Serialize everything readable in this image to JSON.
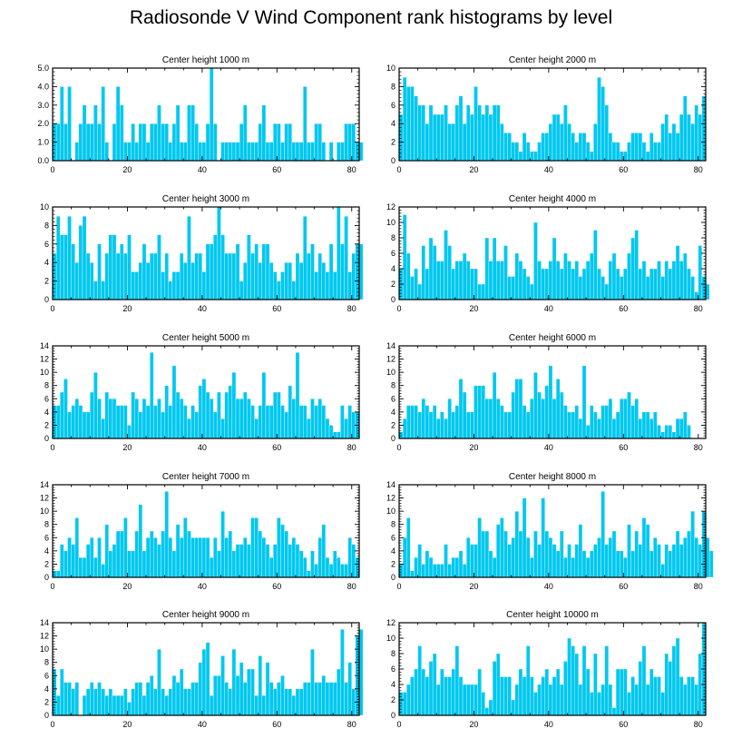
{
  "title": "Radiosonde V Wind Component rank histograms by level",
  "colors": {
    "bar": "#00c8f0",
    "bar_edge": "#ffffff",
    "axis": "#000000"
  },
  "chart_data": [
    {
      "type": "bar",
      "title": "Center height 1000 m",
      "xlabel": "",
      "ylabel": "",
      "xlim": [
        0,
        82
      ],
      "ylim": [
        0,
        5
      ],
      "xticks": [
        "0",
        "20",
        "40",
        "60",
        "80"
      ],
      "yticks": [
        "0.0",
        "1.0",
        "2.0",
        "3.0",
        "4.0",
        "5.0"
      ],
      "values": [
        2,
        2,
        4,
        2,
        4,
        0,
        1,
        2,
        3,
        2,
        2,
        3,
        2,
        4,
        1,
        0,
        2,
        4,
        3,
        1,
        1,
        2,
        1,
        2,
        2,
        1,
        2,
        2,
        3,
        2,
        2,
        1,
        2,
        3,
        1,
        1,
        3,
        3,
        2,
        1,
        1,
        2,
        5,
        2,
        0,
        1,
        1,
        1,
        1,
        1,
        2,
        3,
        1,
        1,
        1,
        2,
        3,
        1,
        1,
        2,
        2,
        1,
        2,
        2,
        1,
        1,
        1,
        4,
        1,
        1,
        2,
        2,
        1,
        0,
        1,
        0,
        1,
        1,
        2,
        2,
        2,
        1,
        1
      ]
    },
    {
      "type": "bar",
      "title": "Center height 2000 m",
      "xlabel": "",
      "ylabel": "",
      "xlim": [
        0,
        82
      ],
      "ylim": [
        0,
        10
      ],
      "xticks": [
        "0",
        "20",
        "40",
        "60",
        "80"
      ],
      "yticks": [
        "0",
        "2",
        "4",
        "6",
        "8",
        "10"
      ],
      "values": [
        5,
        9,
        8,
        8,
        7,
        6,
        6,
        4,
        6,
        5,
        5,
        5,
        6,
        4,
        4,
        6,
        7,
        4,
        6,
        5,
        8,
        6,
        5,
        6,
        5,
        6,
        6,
        4,
        3,
        3,
        2,
        2,
        1,
        3,
        2,
        1,
        1,
        2,
        3,
        3,
        4,
        5,
        5,
        4,
        6,
        4,
        3,
        2,
        3,
        3,
        2,
        1,
        4,
        9,
        8,
        6,
        3,
        2,
        2,
        1,
        1,
        2,
        3,
        3,
        3,
        2,
        1,
        3,
        2,
        2,
        4,
        5,
        3,
        4,
        3,
        5,
        7,
        5,
        4,
        6,
        5,
        7
      ]
    },
    {
      "type": "bar",
      "title": "Center height 3000 m",
      "xlabel": "",
      "ylabel": "",
      "xlim": [
        0,
        82
      ],
      "ylim": [
        0,
        10
      ],
      "xticks": [
        "0",
        "20",
        "40",
        "60",
        "80"
      ],
      "yticks": [
        "0",
        "2",
        "4",
        "6",
        "8",
        "10"
      ],
      "values": [
        5,
        9,
        7,
        7,
        9,
        6,
        4,
        8,
        9,
        5,
        4,
        2,
        6,
        2,
        5,
        7,
        7,
        5,
        6,
        5,
        7,
        3,
        3,
        4,
        6,
        4,
        5,
        5,
        7,
        3,
        5,
        2,
        3,
        3,
        5,
        4,
        9,
        4,
        5,
        5,
        3,
        6,
        6,
        7,
        10,
        7,
        5,
        5,
        5,
        6,
        2,
        4,
        7,
        5,
        6,
        4,
        6,
        6,
        4,
        3,
        2,
        3,
        4,
        4,
        2,
        5,
        4,
        9,
        5,
        6,
        3,
        5,
        4,
        3,
        6,
        3,
        10,
        6,
        9,
        3,
        5,
        6,
        6
      ]
    },
    {
      "type": "bar",
      "title": "Center height 4000 m",
      "xlabel": "",
      "ylabel": "",
      "xlim": [
        0,
        82
      ],
      "ylim": [
        0,
        12
      ],
      "xticks": [
        "0",
        "20",
        "40",
        "60",
        "80"
      ],
      "yticks": [
        "0",
        "2",
        "4",
        "6",
        "8",
        "10",
        "12"
      ],
      "values": [
        4,
        11,
        6,
        3,
        4,
        2,
        7,
        4,
        8,
        7,
        5,
        5,
        9,
        7,
        4,
        5,
        5,
        6,
        5,
        4,
        4,
        2,
        2,
        8,
        5,
        8,
        5,
        5,
        7,
        3,
        3,
        6,
        5,
        4,
        3,
        2,
        10,
        5,
        4,
        4,
        5,
        8,
        5,
        4,
        6,
        5,
        4,
        5,
        3,
        4,
        5,
        6,
        9,
        4,
        3,
        2,
        5,
        6,
        4,
        3,
        4,
        6,
        8,
        9,
        4,
        5,
        3,
        4,
        4,
        5,
        3,
        5,
        4,
        5,
        7,
        5,
        6,
        4,
        3,
        1,
        7,
        3,
        2
      ]
    },
    {
      "type": "bar",
      "title": "Center height 5000 m",
      "xlabel": "",
      "ylabel": "",
      "xlim": [
        0,
        82
      ],
      "ylim": [
        0,
        14
      ],
      "xticks": [
        "0",
        "20",
        "40",
        "60",
        "80"
      ],
      "yticks": [
        "0",
        "2",
        "4",
        "6",
        "8",
        "10",
        "12",
        "14"
      ],
      "values": [
        5,
        5,
        7,
        9,
        4,
        5,
        6,
        5,
        4,
        4,
        7,
        10,
        6,
        3,
        7,
        6,
        6,
        5,
        5,
        5,
        2,
        7,
        6,
        4,
        6,
        5,
        13,
        5,
        6,
        4,
        8,
        5,
        11,
        7,
        6,
        5,
        3,
        5,
        4,
        8,
        9,
        7,
        6,
        4,
        7,
        3,
        7,
        8,
        10,
        6,
        6,
        7,
        6,
        5,
        3,
        5,
        10,
        5,
        5,
        7,
        7,
        5,
        4,
        8,
        6,
        13,
        5,
        5,
        3,
        6,
        5,
        6,
        5,
        3,
        2,
        1,
        1,
        5,
        3,
        5,
        4,
        4
      ]
    },
    {
      "type": "bar",
      "title": "Center height 6000 m",
      "xlabel": "",
      "ylabel": "",
      "xlim": [
        0,
        82
      ],
      "ylim": [
        0,
        14
      ],
      "xticks": [
        "0",
        "20",
        "40",
        "60",
        "80"
      ],
      "yticks": [
        "0",
        "2",
        "4",
        "6",
        "8",
        "10",
        "12",
        "14"
      ],
      "values": [
        1,
        3,
        5,
        5,
        5,
        4,
        6,
        5,
        4,
        5,
        3,
        4,
        3,
        6,
        4,
        5,
        9,
        7,
        4,
        4,
        8,
        8,
        8,
        6,
        6,
        10,
        6,
        5,
        4,
        4,
        7,
        9,
        9,
        5,
        4,
        6,
        10,
        7,
        6,
        8,
        11,
        6,
        9,
        7,
        5,
        4,
        4,
        5,
        3,
        11,
        2,
        5,
        4,
        3,
        5,
        5,
        6,
        3,
        4,
        6,
        6,
        7,
        5,
        6,
        3,
        4,
        4,
        3,
        4,
        2,
        1,
        2,
        2,
        1,
        3,
        3,
        4,
        2
      ]
    },
    {
      "type": "bar",
      "title": "Center height 7000 m",
      "xlabel": "",
      "ylabel": "",
      "xlim": [
        0,
        82
      ],
      "ylim": [
        0,
        14
      ],
      "xticks": [
        "0",
        "20",
        "40",
        "60",
        "80"
      ],
      "yticks": [
        "0",
        "2",
        "4",
        "6",
        "8",
        "10",
        "12",
        "14"
      ],
      "values": [
        1,
        1,
        5,
        4,
        6,
        5,
        9,
        3,
        3,
        5,
        6,
        3,
        6,
        2,
        8,
        4,
        5,
        7,
        7,
        9,
        4,
        4,
        7,
        11,
        4,
        6,
        7,
        6,
        5,
        7,
        13,
        6,
        4,
        8,
        6,
        9,
        7,
        6,
        6,
        6,
        6,
        6,
        3,
        6,
        4,
        10,
        6,
        7,
        4,
        5,
        5,
        6,
        5,
        9,
        9,
        7,
        6,
        5,
        3,
        5,
        9,
        8,
        7,
        5,
        6,
        5,
        4,
        3,
        1,
        4,
        2,
        6,
        8,
        3,
        2,
        4,
        3,
        2,
        2,
        6,
        5,
        3
      ]
    },
    {
      "type": "bar",
      "title": "Center height 8000 m",
      "xlabel": "",
      "ylabel": "",
      "xlim": [
        0,
        82
      ],
      "ylim": [
        0,
        14
      ],
      "xticks": [
        "0",
        "20",
        "40",
        "60",
        "80"
      ],
      "yticks": [
        "0",
        "2",
        "4",
        "6",
        "8",
        "10",
        "12",
        "14"
      ],
      "values": [
        2,
        6,
        9,
        1,
        3,
        5,
        2,
        4,
        3,
        2,
        2,
        2,
        5,
        2,
        3,
        3,
        4,
        2,
        6,
        5,
        5,
        9,
        7,
        7,
        4,
        3,
        8,
        9,
        7,
        5,
        6,
        10,
        7,
        12,
        6,
        3,
        7,
        5,
        12,
        7,
        6,
        5,
        4,
        7,
        3,
        5,
        3,
        5,
        8,
        4,
        3,
        4,
        5,
        6,
        13,
        5,
        6,
        7,
        4,
        4,
        3,
        8,
        4,
        7,
        5,
        9,
        8,
        4,
        6,
        5,
        2,
        5,
        4,
        5,
        7,
        5,
        6,
        7,
        10,
        6,
        5,
        10,
        6,
        4
      ]
    },
    {
      "type": "bar",
      "title": "Center height 9000 m",
      "xlabel": "",
      "ylabel": "",
      "xlim": [
        0,
        82
      ],
      "ylim": [
        0,
        14
      ],
      "xticks": [
        "0",
        "20",
        "40",
        "60",
        "80"
      ],
      "yticks": [
        "0",
        "2",
        "4",
        "6",
        "8",
        "10",
        "12",
        "14"
      ],
      "values": [
        7,
        3,
        7,
        5,
        5,
        4,
        5,
        0,
        3,
        4,
        5,
        4,
        5,
        4,
        3,
        4,
        3,
        3,
        3,
        4,
        2,
        4,
        5,
        5,
        3,
        5,
        6,
        4,
        10,
        4,
        3,
        4,
        6,
        5,
        7,
        4,
        4,
        5,
        5,
        8,
        10,
        11,
        3,
        6,
        6,
        9,
        5,
        4,
        10,
        6,
        8,
        5,
        7,
        7,
        3,
        9,
        3,
        8,
        5,
        4,
        5,
        6,
        4,
        4,
        3,
        4,
        4,
        5,
        5,
        10,
        5,
        5,
        6,
        5,
        5,
        5,
        7,
        13,
        5,
        8,
        4,
        12,
        13
      ]
    },
    {
      "type": "bar",
      "title": "Center height 10000 m",
      "xlabel": "",
      "ylabel": "",
      "xlim": [
        0,
        82
      ],
      "ylim": [
        0,
        12
      ],
      "xticks": [
        "0",
        "20",
        "40",
        "60",
        "80"
      ],
      "yticks": [
        "0",
        "2",
        "4",
        "6",
        "8",
        "10",
        "12"
      ],
      "values": [
        3,
        3,
        4,
        5,
        6,
        9,
        6,
        5,
        7,
        8,
        4,
        6,
        5,
        5,
        6,
        9,
        5,
        4,
        4,
        4,
        4,
        6,
        3,
        1,
        2,
        7,
        8,
        5,
        5,
        5,
        2,
        4,
        6,
        5,
        9,
        5,
        3,
        4,
        5,
        6,
        4,
        5,
        6,
        4,
        7,
        10,
        9,
        8,
        4,
        9,
        6,
        3,
        8,
        3,
        4,
        9,
        4,
        1,
        6,
        6,
        6,
        3,
        5,
        4,
        7,
        9,
        4,
        6,
        5,
        5,
        3,
        8,
        7,
        9,
        10,
        5,
        4,
        5,
        5,
        4,
        8,
        12
      ]
    }
  ]
}
